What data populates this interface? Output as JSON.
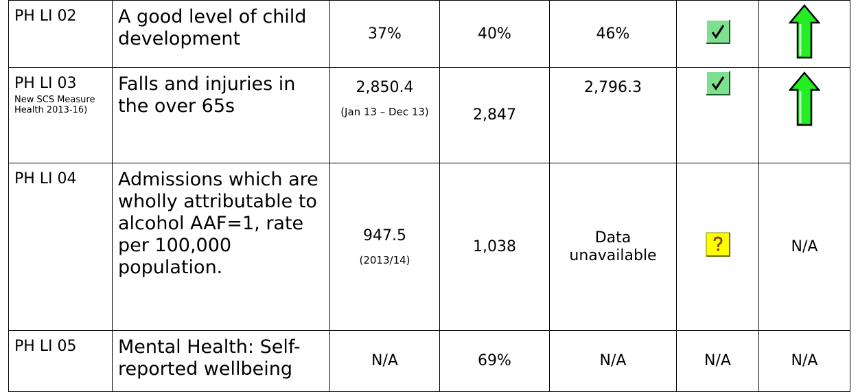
{
  "table": {
    "rows": [
      [
        {
          "text": "PH LI 02"
        },
        {
          "text": "A good level of child development"
        },
        {
          "text": "37%"
        },
        {
          "text": "40%"
        },
        {
          "text": "46%"
        },
        {
          "icon": "check"
        },
        {
          "icon": "arrow-up"
        }
      ],
      [
        {
          "text": "PH LI 03",
          "note": "New SCS Measure Health 2013-16)"
        },
        {
          "text": "Falls and injuries in the over 65s"
        },
        {
          "text": "2,850.4",
          "note": "(Jan 13 – Dec 13)"
        },
        {
          "text": "2,847"
        },
        {
          "text": "2,796.3"
        },
        {
          "icon": "check"
        },
        {
          "icon": "arrow-up"
        }
      ],
      [
        {
          "text": "PH LI 04"
        },
        {
          "text": "Admissions which are wholly attributable to alcohol AAF=1, rate per 100,000 population."
        },
        {
          "text": "947.5",
          "note": "(2013/14)"
        },
        {
          "text": "1,038"
        },
        {
          "text": "Data unavailable"
        },
        {
          "icon": "question"
        },
        {
          "text": "N/A"
        }
      ],
      [
        {
          "text": "PH LI 05"
        },
        {
          "text": "Mental Health: Self-reported wellbeing"
        },
        {
          "text": "N/A"
        },
        {
          "text": "69%"
        },
        {
          "text": "N/A"
        },
        {
          "text": "N/A"
        },
        {
          "text": "N/A"
        }
      ]
    ]
  }
}
